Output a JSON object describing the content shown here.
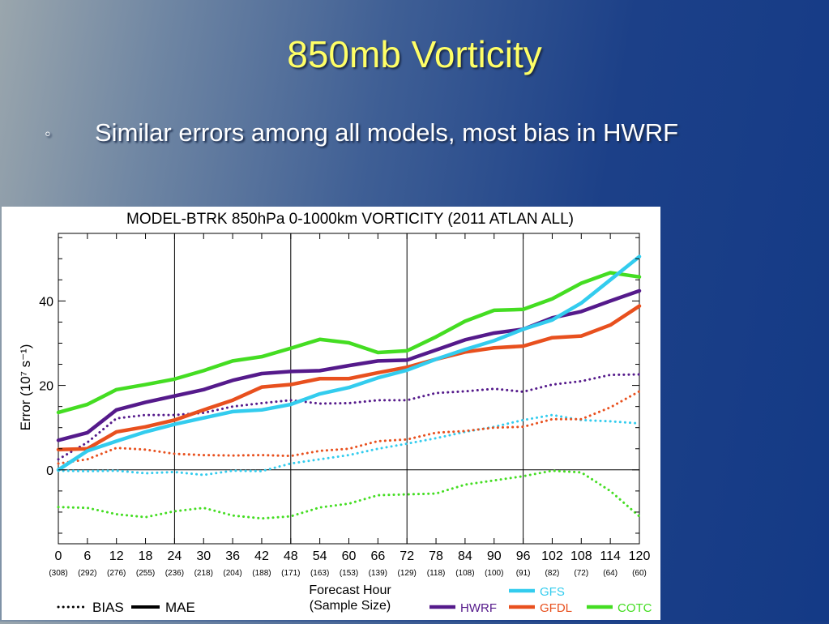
{
  "slide": {
    "title": "850mb Vorticity",
    "bullet_icon": "hollow-circle-bullet",
    "bullet": "Similar errors among all models, most bias in HWRF"
  },
  "chart_data": {
    "type": "line",
    "title": "MODEL-BTRK 850hPa 0-1000km VORTICITY (2011 ATLAN ALL)",
    "xlabel": "Forecast Hour",
    "xlabel2": "(Sample Size)",
    "ylabel": "Error (10⁷ s⁻¹)",
    "x": [
      0,
      6,
      12,
      18,
      24,
      30,
      36,
      42,
      48,
      54,
      60,
      66,
      72,
      78,
      84,
      90,
      96,
      102,
      108,
      114,
      120
    ],
    "sample_sizes": [
      "(308)",
      "(292)",
      "(276)",
      "(255)",
      "(236)",
      "(218)",
      "(204)",
      "(188)",
      "(171)",
      "(163)",
      "(153)",
      "(139)",
      "(129)",
      "(118)",
      "(108)",
      "(100)",
      "(91)",
      "(82)",
      "(72)",
      "(64)",
      "(60)"
    ],
    "xlim": [
      0,
      120
    ],
    "ylim": [
      -17.5,
      56
    ],
    "yticks": [
      0,
      20,
      40
    ],
    "vertical_gridlines": [
      24,
      48,
      72,
      96
    ],
    "zero_line": true,
    "style_legend": [
      {
        "label": "BIAS",
        "style": "dotted"
      },
      {
        "label": "MAE",
        "style": "solid"
      }
    ],
    "series": [
      {
        "name": "GFS",
        "color": "#33ccee",
        "kind": "MAE",
        "values": [
          0,
          4.5,
          6.8,
          9,
          10.8,
          12.3,
          13.8,
          14.2,
          15.5,
          18,
          19.5,
          21.8,
          23.6,
          26.2,
          28.5,
          30.6,
          33.3,
          35.5,
          39.5,
          45,
          50.5
        ]
      },
      {
        "name": "GFS",
        "color": "#33ccee",
        "kind": "BIAS",
        "values": [
          -0.2,
          -0.3,
          -0.2,
          -0.8,
          -0.5,
          -1.2,
          -0.2,
          -0.3,
          1.5,
          2.5,
          3.5,
          5,
          6.2,
          7.5,
          9,
          10.2,
          11.8,
          13,
          11.8,
          11.5,
          11
        ]
      },
      {
        "name": "HWRF",
        "color": "#551a8b",
        "kind": "MAE",
        "values": [
          7,
          8.8,
          14.2,
          16,
          17.5,
          19,
          21.2,
          22.8,
          23.3,
          23.5,
          24.7,
          25.8,
          26,
          28.4,
          30.8,
          32.4,
          33.3,
          36,
          37.5,
          40,
          42.4
        ]
      },
      {
        "name": "HWRF",
        "color": "#551a8b",
        "kind": "BIAS",
        "values": [
          2.5,
          6.5,
          12.2,
          13,
          13,
          13.5,
          15,
          15.8,
          16.5,
          15.7,
          15.8,
          16.5,
          16.5,
          18.2,
          18.6,
          19.2,
          18.5,
          20.2,
          21,
          22.5,
          22.6
        ]
      },
      {
        "name": "GFDL",
        "color": "#e8501e",
        "kind": "MAE",
        "values": [
          4.8,
          5,
          9,
          10.2,
          11.8,
          14.2,
          16.5,
          19.6,
          20.2,
          21.6,
          21.6,
          23,
          24.3,
          26.2,
          27.9,
          28.9,
          29.3,
          31.3,
          31.7,
          34.3,
          38.8
        ]
      },
      {
        "name": "GFDL",
        "color": "#e8501e",
        "kind": "BIAS",
        "values": [
          1.5,
          2.5,
          5.2,
          4.8,
          3.8,
          3.5,
          3.4,
          3.5,
          3.3,
          4.5,
          5,
          6.8,
          7.2,
          8.8,
          9.2,
          10,
          10.2,
          12,
          12,
          14.8,
          18.6
        ]
      },
      {
        "name": "COTC",
        "color": "#44dd22",
        "kind": "MAE",
        "values": [
          13.6,
          15.5,
          19,
          20.2,
          21.5,
          23.5,
          25.8,
          26.8,
          28.8,
          30.9,
          30.1,
          27.8,
          28.2,
          31.5,
          35.2,
          37.8,
          38,
          40.5,
          44.2,
          46.7,
          45.7
        ]
      },
      {
        "name": "COTC",
        "color": "#44dd22",
        "kind": "BIAS",
        "values": [
          -8.8,
          -9,
          -10.5,
          -11.2,
          -9.8,
          -9,
          -10.8,
          -11.5,
          -11,
          -8.9,
          -8,
          -6,
          -5.8,
          -5.6,
          -3.5,
          -2.5,
          -1.5,
          -0.2,
          -0.6,
          -5,
          -11
        ]
      }
    ],
    "legend_order": [
      "HWRF",
      "GFDL",
      "GFS",
      "COTC"
    ],
    "legend_colors": {
      "HWRF": "#551a8b",
      "GFDL": "#e8501e",
      "GFS": "#33ccee",
      "COTC": "#44dd22"
    },
    "legend_placement": "bottom"
  }
}
